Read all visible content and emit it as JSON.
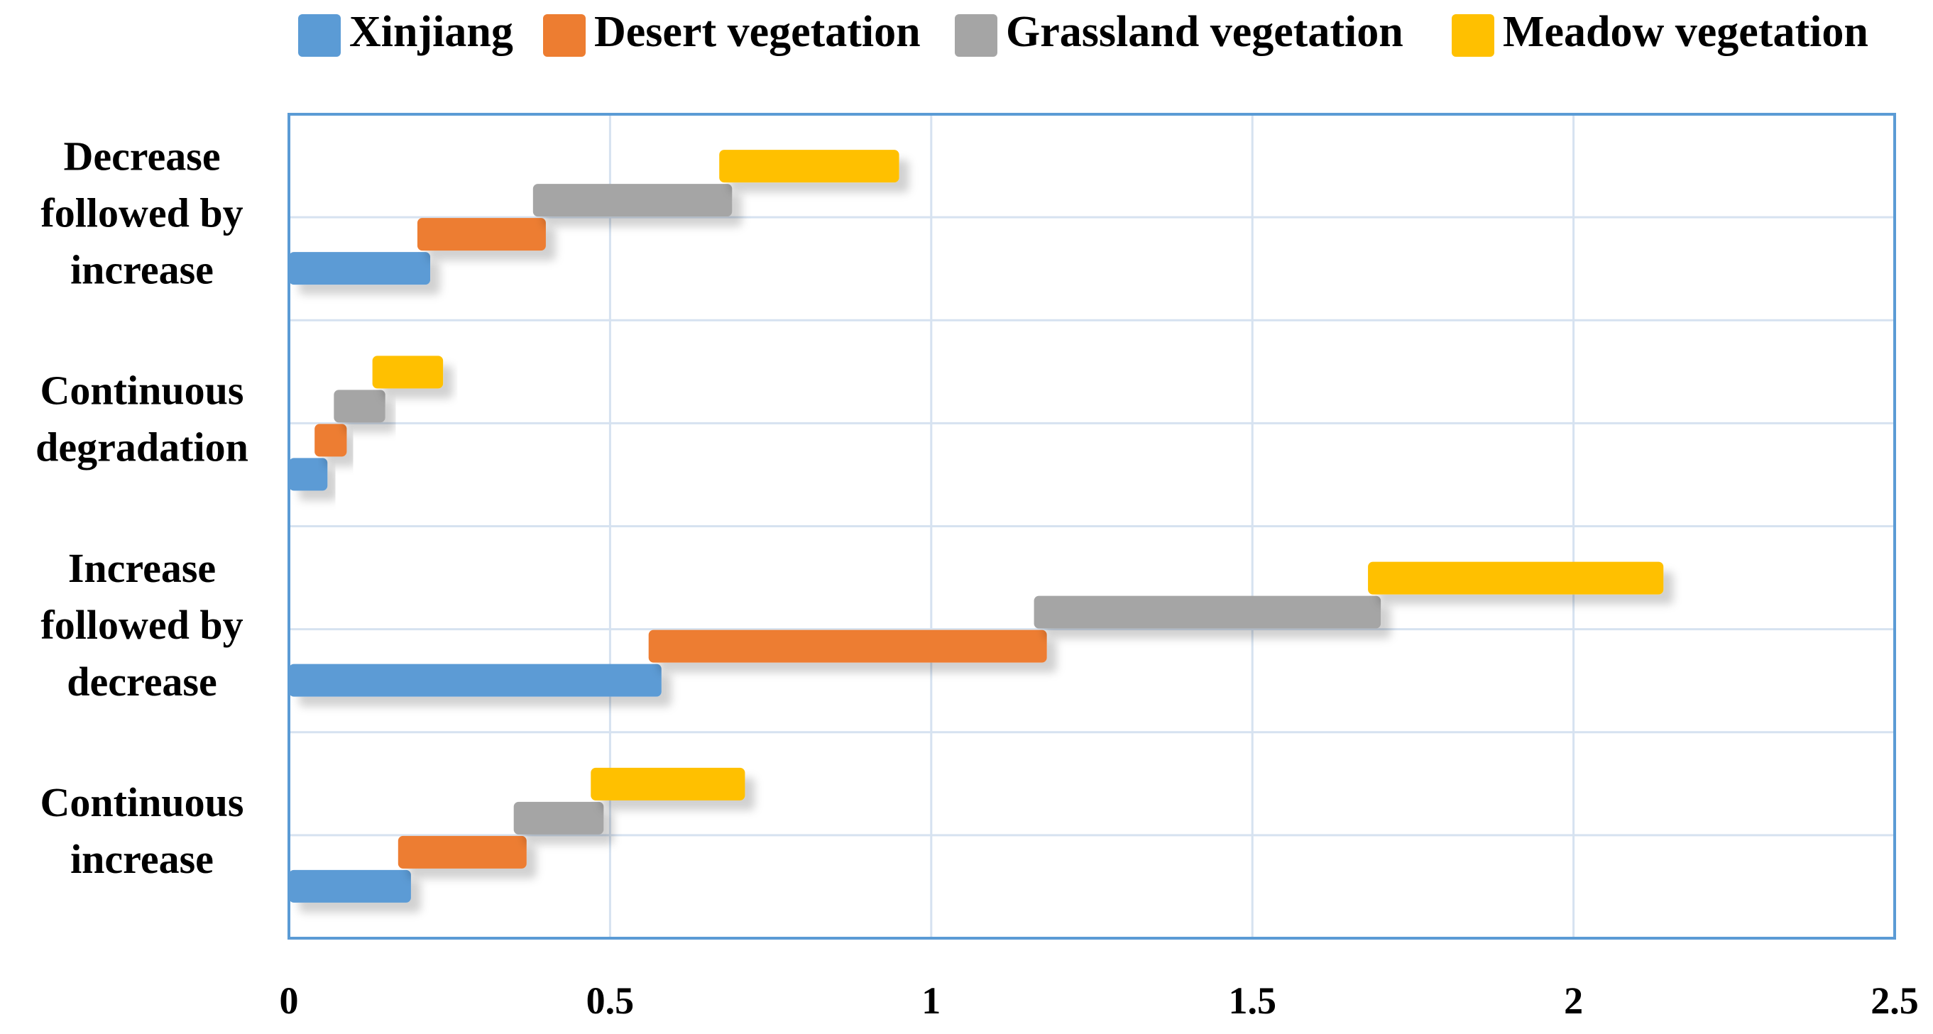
{
  "chart_data": {
    "type": "bar",
    "orientation": "horizontal",
    "stacked": "offset",
    "categories": [
      "Decrease followed by increase",
      "Continuous degradation",
      "Increase followed by decrease",
      "Continuous increase"
    ],
    "category_lines": [
      [
        "Decrease",
        "followed by",
        "increase"
      ],
      [
        "Continuous",
        "degradation"
      ],
      [
        "Increase",
        "followed by",
        "decrease"
      ],
      [
        "Continuous",
        "increase"
      ]
    ],
    "series": [
      {
        "name": "Xinjiang",
        "color": "#5b9bd5",
        "ranges": [
          [
            0,
            0.22
          ],
          [
            0,
            0.06
          ],
          [
            0,
            0.58
          ],
          [
            0,
            0.19
          ]
        ]
      },
      {
        "name": "Desert vegetation",
        "color": "#ed7d31",
        "ranges": [
          [
            0.2,
            0.4
          ],
          [
            0.04,
            0.09
          ],
          [
            0.56,
            1.18
          ],
          [
            0.17,
            0.37
          ]
        ]
      },
      {
        "name": "Grassland vegetation",
        "color": "#a5a5a5",
        "ranges": [
          [
            0.38,
            0.69
          ],
          [
            0.07,
            0.15
          ],
          [
            1.16,
            1.7
          ],
          [
            0.35,
            0.49
          ]
        ]
      },
      {
        "name": "Meadow vegetation",
        "color": "#ffc000",
        "ranges": [
          [
            0.67,
            0.95
          ],
          [
            0.13,
            0.24
          ],
          [
            1.68,
            2.14
          ],
          [
            0.47,
            0.71
          ]
        ]
      }
    ],
    "xlim": [
      0,
      2.5
    ],
    "xticks": [
      "0",
      "0.5",
      "1",
      "1.5",
      "2",
      "2.5"
    ],
    "xtick_values": [
      0,
      0.5,
      1,
      1.5,
      2,
      2.5
    ],
    "title": "",
    "xlabel": "",
    "ylabel": "",
    "legend_position": "top",
    "grid": true
  }
}
